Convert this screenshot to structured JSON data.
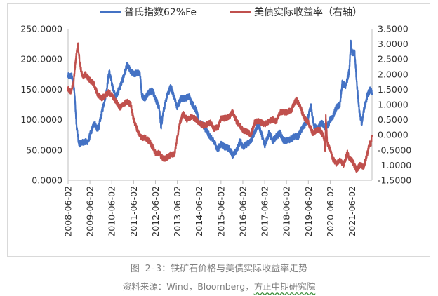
{
  "chart_data": {
    "type": "line",
    "legend": {
      "placement": "top",
      "entries": [
        "普氏指数62%Fe",
        "美债实际收益率（右轴）"
      ]
    },
    "x_tick_labels": [
      "2008-06-02",
      "2009-06-02",
      "2010-06-02",
      "2011-06-02",
      "2012-06-02",
      "2013-06-02",
      "2014-06-02",
      "2015-06-02",
      "2016-06-02",
      "2017-06-02",
      "2018-06-02",
      "2019-06-02",
      "2020-06-02",
      "2021-06-02"
    ],
    "y_left": {
      "range": [
        0,
        250
      ],
      "tick_labels": [
        "250.0000",
        "200.0000",
        "150.0000",
        "100.0000",
        "50.0000",
        "0.0000"
      ],
      "ticks": [
        250,
        200,
        150,
        100,
        50,
        0
      ]
    },
    "y_right": {
      "range": [
        -1.5,
        3.5
      ],
      "tick_labels": [
        "3.5000",
        "3.0000",
        "2.5000",
        "2.0000",
        "1.5000",
        "1.0000",
        "0.5000",
        "0.0000",
        "-0.5000",
        "-1.0000",
        "-1.5000"
      ],
      "ticks": [
        3.5,
        3.0,
        2.5,
        2.0,
        1.5,
        1.0,
        0.5,
        0.0,
        -0.5,
        -1.0,
        -1.5
      ]
    },
    "grid": false,
    "series": [
      {
        "name": "普氏指数62%Fe",
        "color": "#4472c4",
        "axis": "left",
        "points": [
          [
            "2008-06-02",
            172
          ],
          [
            "2008-08-01",
            172
          ],
          [
            "2008-09-15",
            150
          ],
          [
            "2008-10-20",
            90
          ],
          [
            "2008-12-01",
            60
          ],
          [
            "2009-01-15",
            62
          ],
          [
            "2009-03-01",
            63
          ],
          [
            "2009-05-01",
            64
          ],
          [
            "2009-06-15",
            78
          ],
          [
            "2009-08-15",
            95
          ],
          [
            "2009-10-15",
            82
          ],
          [
            "2009-12-15",
            110
          ],
          [
            "2010-03-01",
            145
          ],
          [
            "2010-04-20",
            180
          ],
          [
            "2010-06-02",
            160
          ],
          [
            "2010-08-01",
            137
          ],
          [
            "2010-10-01",
            150
          ],
          [
            "2010-12-15",
            170
          ],
          [
            "2011-02-15",
            190
          ],
          [
            "2011-04-15",
            180
          ],
          [
            "2011-06-02",
            175
          ],
          [
            "2011-08-15",
            178
          ],
          [
            "2011-09-15",
            178
          ],
          [
            "2011-10-20",
            140
          ],
          [
            "2011-12-01",
            135
          ],
          [
            "2012-02-15",
            145
          ],
          [
            "2012-04-15",
            148
          ],
          [
            "2012-06-02",
            135
          ],
          [
            "2012-08-01",
            120
          ],
          [
            "2012-09-05",
            88
          ],
          [
            "2012-10-15",
            115
          ],
          [
            "2012-12-15",
            140
          ],
          [
            "2013-02-15",
            155
          ],
          [
            "2013-04-01",
            140
          ],
          [
            "2013-06-02",
            120
          ],
          [
            "2013-08-01",
            135
          ],
          [
            "2013-10-01",
            135
          ],
          [
            "2013-12-15",
            138
          ],
          [
            "2014-02-15",
            125
          ],
          [
            "2014-04-15",
            115
          ],
          [
            "2014-06-02",
            95
          ],
          [
            "2014-08-15",
            90
          ],
          [
            "2014-10-15",
            80
          ],
          [
            "2014-12-15",
            70
          ],
          [
            "2015-02-15",
            63
          ],
          [
            "2015-04-01",
            50
          ],
          [
            "2015-06-02",
            60
          ],
          [
            "2015-08-01",
            55
          ],
          [
            "2015-10-15",
            52
          ],
          [
            "2015-12-15",
            42
          ],
          [
            "2016-02-15",
            48
          ],
          [
            "2016-04-20",
            65
          ],
          [
            "2016-06-02",
            55
          ],
          [
            "2016-08-15",
            60
          ],
          [
            "2016-10-15",
            65
          ],
          [
            "2016-12-15",
            80
          ],
          [
            "2017-02-20",
            92
          ],
          [
            "2017-04-15",
            75
          ],
          [
            "2017-06-02",
            58
          ],
          [
            "2017-08-15",
            78
          ],
          [
            "2017-10-15",
            65
          ],
          [
            "2017-12-15",
            72
          ],
          [
            "2018-02-15",
            78
          ],
          [
            "2018-04-15",
            65
          ],
          [
            "2018-06-02",
            65
          ],
          [
            "2018-08-15",
            68
          ],
          [
            "2018-10-15",
            72
          ],
          [
            "2018-12-15",
            72
          ],
          [
            "2019-02-15",
            85
          ],
          [
            "2019-04-15",
            93
          ],
          [
            "2019-06-02",
            105
          ],
          [
            "2019-07-15",
            122
          ],
          [
            "2019-09-01",
            90
          ],
          [
            "2019-11-01",
            85
          ],
          [
            "2020-01-15",
            95
          ],
          [
            "2020-03-15",
            85
          ],
          [
            "2020-05-15",
            95
          ],
          [
            "2020-06-02",
            100
          ],
          [
            "2020-07-15",
            105
          ],
          [
            "2020-09-15",
            120
          ],
          [
            "2020-11-15",
            125
          ],
          [
            "2020-12-20",
            160
          ],
          [
            "2021-02-15",
            155
          ],
          [
            "2021-04-15",
            180
          ],
          [
            "2021-05-12",
            228
          ],
          [
            "2021-06-02",
            210
          ],
          [
            "2021-07-15",
            210
          ],
          [
            "2021-08-20",
            160
          ],
          [
            "2021-10-01",
            115
          ],
          [
            "2021-11-15",
            92
          ],
          [
            "2021-12-15",
            115
          ],
          [
            "2022-02-15",
            140
          ],
          [
            "2022-04-01",
            150
          ],
          [
            "2022-05-01",
            145
          ]
        ]
      },
      {
        "name": "美债实际收益率（右轴）",
        "color": "#c0504d",
        "axis": "right",
        "points": [
          [
            "2008-06-02",
            1.5
          ],
          [
            "2008-07-15",
            1.4
          ],
          [
            "2008-09-01",
            1.7
          ],
          [
            "2008-10-15",
            2.6
          ],
          [
            "2008-11-15",
            3.0
          ],
          [
            "2008-12-20",
            2.3
          ],
          [
            "2009-02-01",
            1.9
          ],
          [
            "2009-03-15",
            2.0
          ],
          [
            "2009-06-02",
            1.8
          ],
          [
            "2009-08-01",
            1.7
          ],
          [
            "2009-10-15",
            1.3
          ],
          [
            "2009-12-15",
            1.2
          ],
          [
            "2010-02-15",
            1.3
          ],
          [
            "2010-04-15",
            1.4
          ],
          [
            "2010-06-02",
            1.3
          ],
          [
            "2010-08-15",
            1.1
          ],
          [
            "2010-10-15",
            0.9
          ],
          [
            "2010-12-15",
            1.0
          ],
          [
            "2011-02-15",
            1.1
          ],
          [
            "2011-04-15",
            1.0
          ],
          [
            "2011-06-02",
            0.5
          ],
          [
            "2011-08-15",
            0.1
          ],
          [
            "2011-10-15",
            -0.1
          ],
          [
            "2011-12-15",
            -0.1
          ],
          [
            "2012-02-15",
            -0.2
          ],
          [
            "2012-04-15",
            -0.4
          ],
          [
            "2012-06-02",
            -0.6
          ],
          [
            "2012-08-01",
            -0.6
          ],
          [
            "2012-10-15",
            -0.8
          ],
          [
            "2012-12-15",
            -0.75
          ],
          [
            "2013-02-15",
            -0.65
          ],
          [
            "2013-04-15",
            -0.65
          ],
          [
            "2013-06-02",
            -0.1
          ],
          [
            "2013-07-15",
            0.4
          ],
          [
            "2013-09-05",
            0.7
          ],
          [
            "2013-11-15",
            0.5
          ],
          [
            "2014-01-15",
            0.6
          ],
          [
            "2014-03-15",
            0.55
          ],
          [
            "2014-06-02",
            0.4
          ],
          [
            "2014-08-15",
            0.3
          ],
          [
            "2014-10-15",
            0.35
          ],
          [
            "2014-12-15",
            0.4
          ],
          [
            "2015-02-01",
            0.2
          ],
          [
            "2015-04-15",
            0.25
          ],
          [
            "2015-06-02",
            0.55
          ],
          [
            "2015-08-15",
            0.55
          ],
          [
            "2015-10-15",
            0.6
          ],
          [
            "2015-12-15",
            0.75
          ],
          [
            "2016-02-15",
            0.45
          ],
          [
            "2016-04-15",
            0.3
          ],
          [
            "2016-06-02",
            0.15
          ],
          [
            "2016-08-15",
            0.1
          ],
          [
            "2016-10-15",
            0.0
          ],
          [
            "2016-12-15",
            0.4
          ],
          [
            "2017-02-15",
            0.45
          ],
          [
            "2017-04-15",
            0.4
          ],
          [
            "2017-06-02",
            0.35
          ],
          [
            "2017-08-15",
            0.45
          ],
          [
            "2017-10-15",
            0.5
          ],
          [
            "2017-12-15",
            0.45
          ],
          [
            "2018-02-15",
            0.75
          ],
          [
            "2018-04-15",
            0.75
          ],
          [
            "2018-06-02",
            0.75
          ],
          [
            "2018-08-15",
            0.8
          ],
          [
            "2018-10-15",
            1.05
          ],
          [
            "2018-11-15",
            1.15
          ],
          [
            "2019-01-15",
            0.95
          ],
          [
            "2019-03-15",
            0.6
          ],
          [
            "2019-06-02",
            0.4
          ],
          [
            "2019-08-15",
            0.05
          ],
          [
            "2019-10-15",
            0.15
          ],
          [
            "2019-12-15",
            0.15
          ],
          [
            "2020-02-15",
            -0.05
          ],
          [
            "2020-03-10",
            -0.5
          ],
          [
            "2020-03-20",
            0.6
          ],
          [
            "2020-04-15",
            -0.3
          ],
          [
            "2020-06-02",
            -0.5
          ],
          [
            "2020-07-15",
            -0.8
          ],
          [
            "2020-09-15",
            -0.95
          ],
          [
            "2020-11-15",
            -0.85
          ],
          [
            "2021-01-15",
            -1.0
          ],
          [
            "2021-03-15",
            -0.6
          ],
          [
            "2021-04-15",
            -0.75
          ],
          [
            "2021-06-02",
            -0.85
          ],
          [
            "2021-08-15",
            -1.15
          ],
          [
            "2021-10-15",
            -1.0
          ],
          [
            "2021-12-15",
            -1.05
          ],
          [
            "2022-02-15",
            -0.6
          ],
          [
            "2022-03-20",
            -0.3
          ],
          [
            "2022-04-15",
            -0.3
          ],
          [
            "2022-05-01",
            0.0
          ]
        ]
      }
    ]
  },
  "caption": {
    "figure_label": "图 2-3：",
    "figure_title": "铁矿石价格与美债实际收益率走势",
    "source_prefix": "资料来源：Wind，Bloomberg，",
    "source_org": "方正中期研究院"
  }
}
